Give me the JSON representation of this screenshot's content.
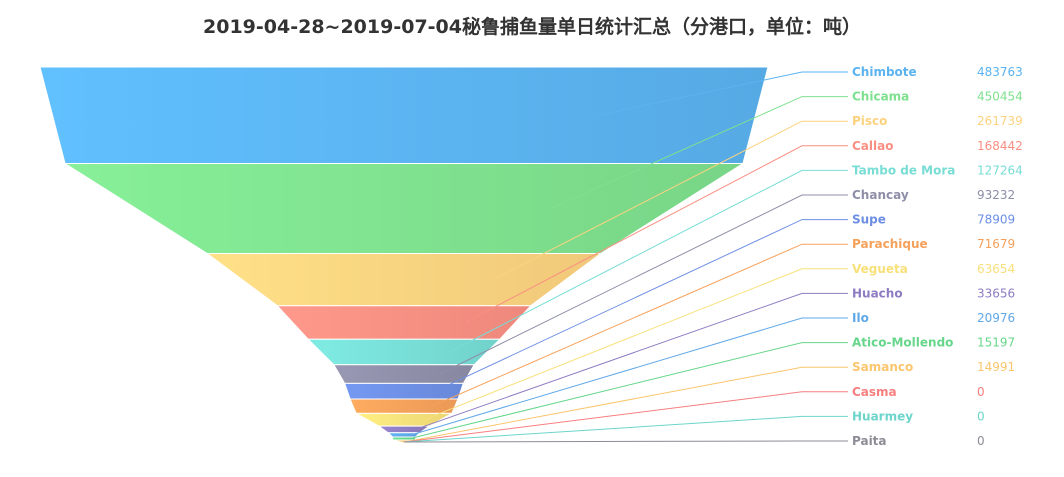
{
  "chart_data": {
    "type": "funnel",
    "title": "2019-04-28~2019-07-04秘鲁捕鱼量单日统计汇总（分港口，单位：吨）",
    "sort": "descending",
    "categories": [
      "Chimbote",
      "Chicama",
      "Pisco",
      "Callao",
      "Tambo de Mora",
      "Chancay",
      "Supe",
      "Parachique",
      "Vegueta",
      "Huacho",
      "Ilo",
      "Atico-Mollendo",
      "Samanco",
      "Casma",
      "Huarmey",
      "Paita"
    ],
    "values": [
      483763,
      450454,
      261739,
      168442,
      127264,
      93232,
      78909,
      71679,
      63654,
      33656,
      20976,
      15197,
      14991,
      0,
      0,
      0
    ],
    "value_labels": [
      "483763",
      "450454",
      "261739",
      "168442",
      "127264",
      "93232",
      "78909",
      "71679",
      "63654",
      "33656",
      "20976",
      "15197",
      "14991",
      "0",
      "0",
      "0"
    ],
    "colors": [
      "#5BB3F0",
      "#7EE08E",
      "#FDD27F",
      "#FA8F82",
      "#77DDD5",
      "#8E8EA8",
      "#6D8FE3",
      "#F6A15B",
      "#F8E07A",
      "#8E7CC3",
      "#5FA8E8",
      "#66D68A",
      "#FBC66E",
      "#F77F7F",
      "#6DD5CB",
      "#8C8C96"
    ]
  }
}
